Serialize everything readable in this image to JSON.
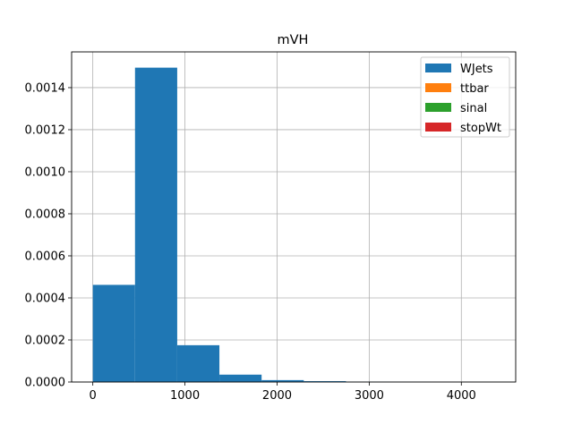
{
  "chart_data": {
    "type": "bar",
    "title": "mVH",
    "xlabel": "",
    "ylabel": "",
    "xlim": [
      -230,
      4590
    ],
    "ylim": [
      0,
      0.00157
    ],
    "grid": true,
    "legend_placement": "top-right",
    "x_ticks": [
      {
        "value": 0,
        "label": "0"
      },
      {
        "value": 1000,
        "label": "1000"
      },
      {
        "value": 2000,
        "label": "2000"
      },
      {
        "value": 3000,
        "label": "3000"
      },
      {
        "value": 4000,
        "label": "4000"
      }
    ],
    "y_ticks": [
      {
        "value": 0,
        "label": "0.0000"
      },
      {
        "value": 0.0002,
        "label": "0.0002"
      },
      {
        "value": 0.0004,
        "label": "0.0004"
      },
      {
        "value": 0.0006,
        "label": "0.0006"
      },
      {
        "value": 0.0008,
        "label": "0.0008"
      },
      {
        "value": 0.001,
        "label": "0.0010"
      },
      {
        "value": 0.0012,
        "label": "0.0012"
      },
      {
        "value": 0.0014,
        "label": "0.0014"
      }
    ],
    "bin_edges": [
      0,
      458,
      916,
      1374,
      1832,
      2290,
      2748,
      3206,
      3664,
      4122,
      4580
    ],
    "series": [
      {
        "name": "WJets",
        "color": "#1f77b4",
        "values": [
          0.000462,
          0.001495,
          0.000175,
          3.5e-05,
          9e-06,
          4e-06,
          1e-06,
          5e-07,
          3e-07,
          2e-07
        ]
      },
      {
        "name": "ttbar",
        "color": "#ff7f0e",
        "values": []
      },
      {
        "name": "sinal",
        "color": "#2ca02c",
        "values": []
      },
      {
        "name": "stopWt",
        "color": "#d62728",
        "values": []
      }
    ]
  }
}
